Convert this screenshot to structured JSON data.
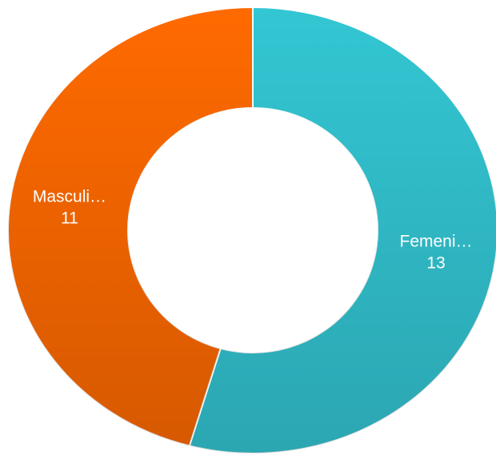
{
  "chart_data": {
    "type": "donut",
    "categories": [
      "Femeni…",
      "Masculi…"
    ],
    "values": [
      13,
      11
    ],
    "colors": [
      "#33c6d3",
      "#ff6a00"
    ]
  }
}
